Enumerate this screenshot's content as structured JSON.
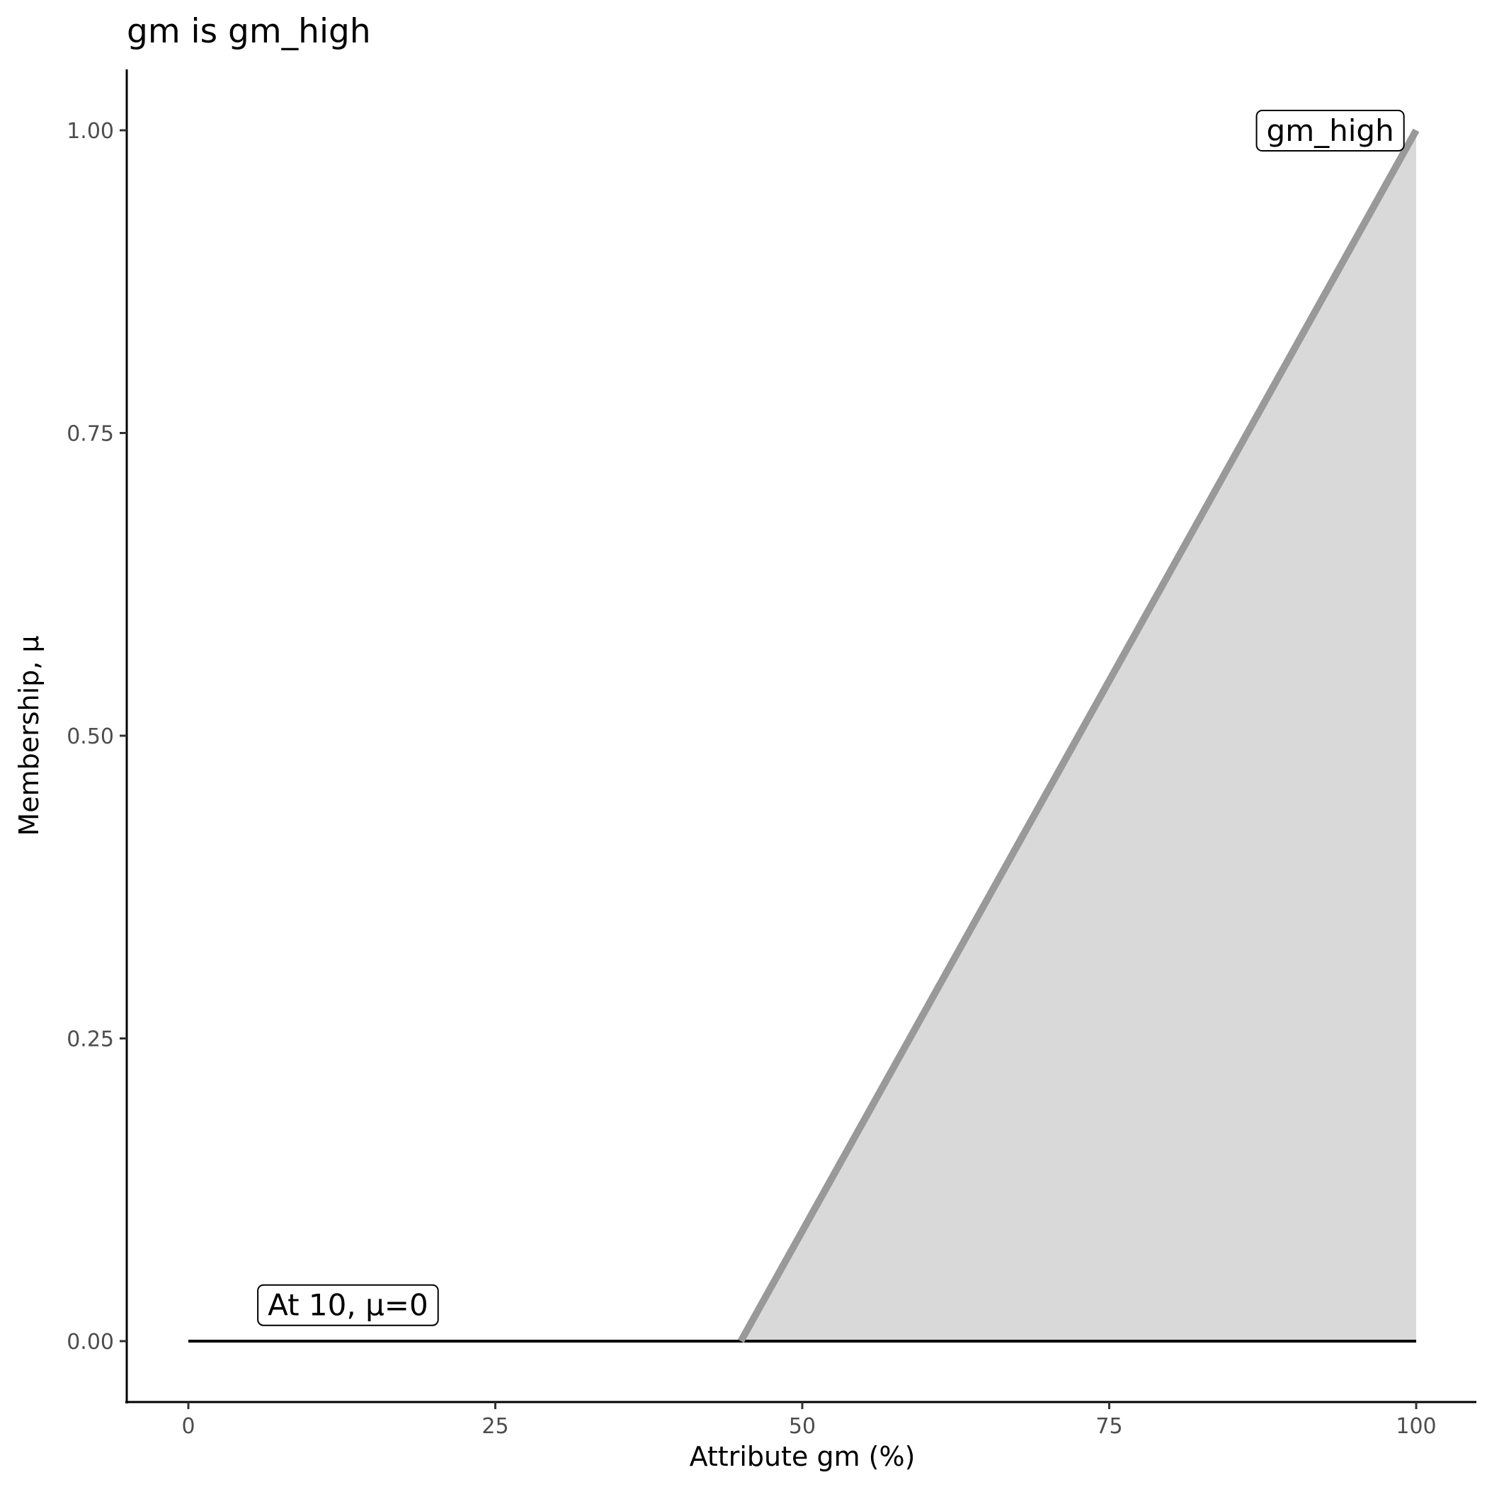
{
  "chart_data": {
    "type": "area",
    "title": "gm is gm_high",
    "xlabel": "Attribute gm (%)",
    "ylabel": "Membership, μ",
    "xlim": [
      -5,
      105
    ],
    "ylim": [
      -0.05,
      1.05
    ],
    "x_ticks": [
      0,
      25,
      50,
      75,
      100
    ],
    "x_tick_labels": [
      "0",
      "25",
      "50",
      "75",
      "100"
    ],
    "y_ticks": [
      0,
      0.25,
      0.5,
      0.75,
      1.0
    ],
    "y_tick_labels": [
      "0.00",
      "0.25",
      "0.50",
      "0.75",
      "1.00"
    ],
    "grid": false,
    "series": [
      {
        "name": "gm_high",
        "x": [
          0,
          45,
          100
        ],
        "y": [
          0,
          0,
          1
        ],
        "line_color": "#999999",
        "fill_color": "#d9d9d9"
      }
    ],
    "baseline": {
      "x": [
        0,
        100
      ],
      "y": [
        0,
        0
      ],
      "color": "#000000"
    },
    "annotations": [
      {
        "text": "gm_high",
        "x": 93,
        "y": 1.0
      },
      {
        "text": "At 10, μ=0",
        "x": 13,
        "y": 0.03
      }
    ]
  }
}
